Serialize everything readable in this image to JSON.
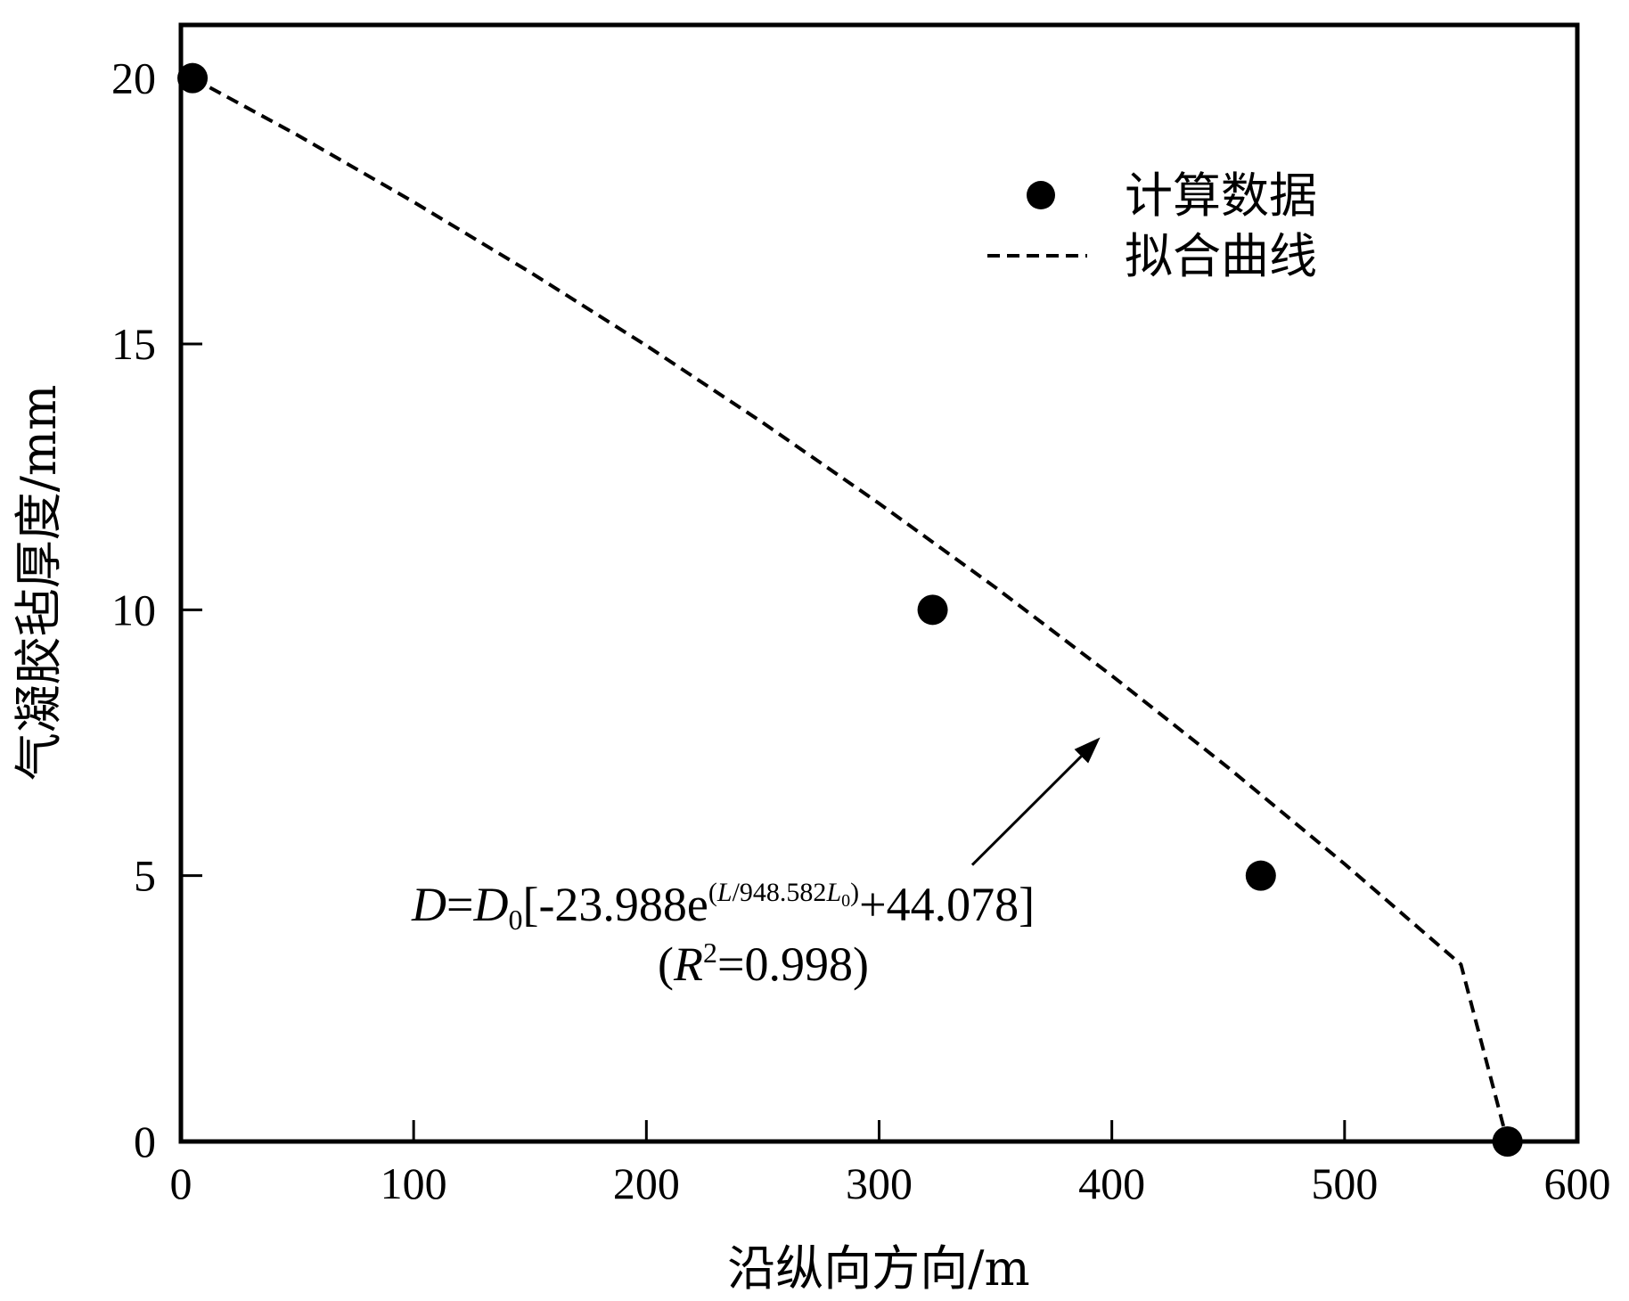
{
  "chart_data": {
    "type": "scatter",
    "xlabel": "沿纵向方向/m",
    "ylabel": "气凝胶毡厚度/mm",
    "xlim": [
      0,
      600
    ],
    "ylim": [
      0,
      21
    ],
    "xticks": [
      0,
      100,
      200,
      300,
      400,
      500,
      600
    ],
    "yticks": [
      0,
      5,
      10,
      15,
      20
    ],
    "grid": false,
    "legend_position": "top-right",
    "series": [
      {
        "name": "计算数据",
        "kind": "scatter",
        "marker": "filled-circle",
        "x": [
          5,
          323,
          464,
          570
        ],
        "y": [
          20,
          10,
          5,
          0
        ]
      },
      {
        "name": "拟合曲线",
        "kind": "line",
        "style": "dashed",
        "x": [
          5,
          50,
          100,
          150,
          200,
          250,
          300,
          350,
          400,
          450,
          500,
          550,
          570
        ],
        "y": [
          20.0,
          18.93,
          17.67,
          16.35,
          14.97,
          13.52,
          12.0,
          10.42,
          8.76,
          7.03,
          5.22,
          3.33,
          0.0
        ]
      }
    ],
    "annotation": {
      "eq_D": "D",
      "eq_eq1": "=",
      "eq_D0": "D",
      "eq_D0_sub": "0",
      "eq_body": "[-23.988e",
      "eq_exp_open": "(",
      "eq_exp_L": "L",
      "eq_exp_mid": "/948.582",
      "eq_exp_L0": "L",
      "eq_exp_L0_sub": "0",
      "eq_exp_close": ")",
      "eq_tail": "+44.078]",
      "r2_open": "(",
      "r2_R": "R",
      "r2_sup": "2",
      "r2_tail": "=0.998)",
      "arrow_points_to": {
        "x": 395,
        "y": 7.6
      },
      "arrow_from": {
        "x": 340,
        "y": 5.2
      }
    }
  }
}
